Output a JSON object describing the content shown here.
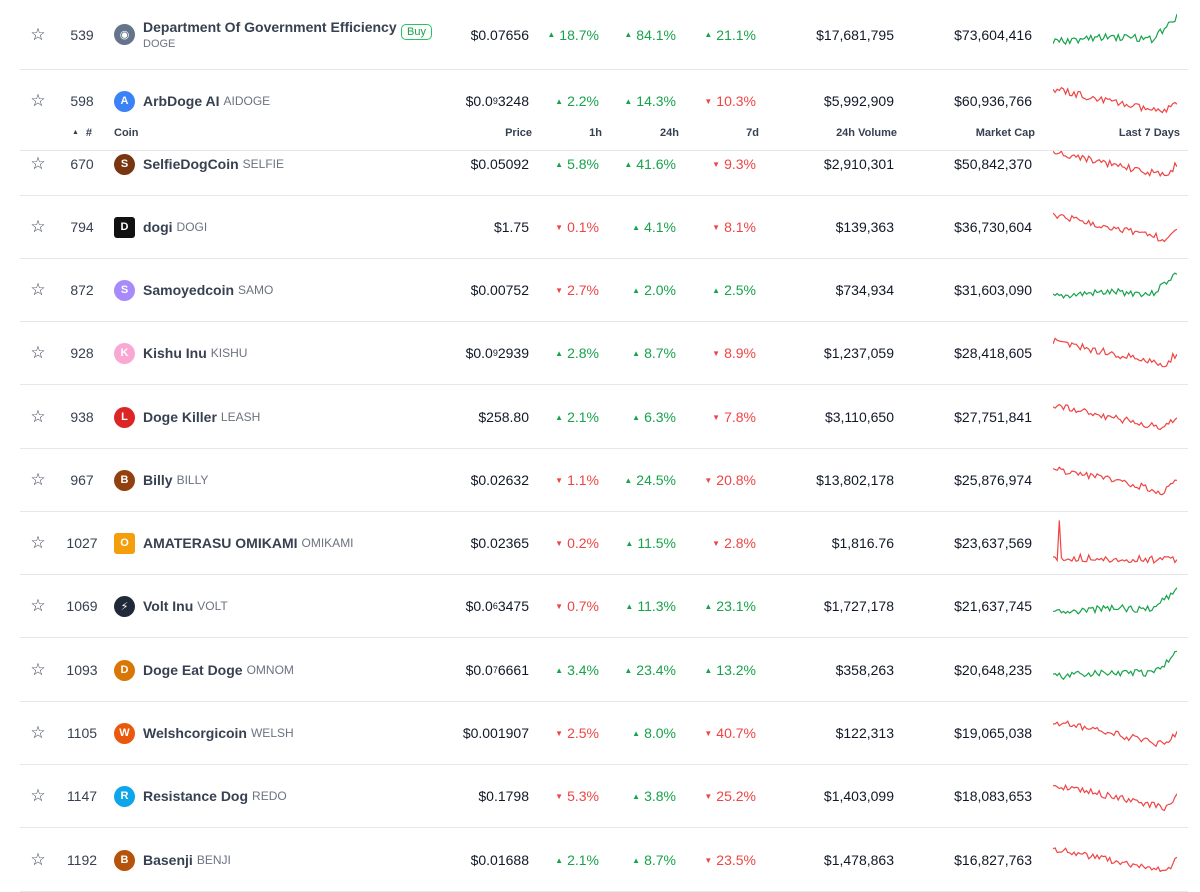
{
  "header": {
    "sort_icon": "▲",
    "rank": "#",
    "coin": "Coin",
    "price": "Price",
    "h1": "1h",
    "h24": "24h",
    "d7": "7d",
    "volume": "24h Volume",
    "market_cap": "Market Cap",
    "last7": "Last 7 Days"
  },
  "buy_label": "Buy",
  "colors": {
    "up": "#16a34a",
    "down": "#ef4444",
    "border": "#e5e7eb"
  },
  "rows": [
    {
      "rank": "539",
      "name": "Department Of Government Efficiency",
      "symbol": "DOGE",
      "price_pre": "$0.07656",
      "price_sub": "",
      "price_post": "",
      "h1": "18.7%",
      "h1_dir": "up",
      "h24": "84.1%",
      "h24_dir": "up",
      "d7": "21.1%",
      "d7_dir": "up",
      "volume": "$17,681,795",
      "mcap": "$73,604,416",
      "spark_dir": "up",
      "logo_icon": "doge-efficiency-logo-icon",
      "logo_color": "#64748b",
      "logo_glyph": "◉"
    },
    {
      "rank": "598",
      "name": "ArbDoge AI",
      "symbol": "AIDOGE",
      "price_pre": "$0.0",
      "price_sub": "9",
      "price_post": "3248",
      "h1": "2.2%",
      "h1_dir": "up",
      "h24": "14.3%",
      "h24_dir": "up",
      "d7": "10.3%",
      "d7_dir": "down",
      "volume": "$5,992,909",
      "mcap": "$60,936,766",
      "spark_dir": "down",
      "logo_icon": "arbdoge-logo-icon",
      "logo_color": "#3b82f6",
      "logo_glyph": "A"
    },
    {
      "rank": "670",
      "name": "SelfieDogCoin",
      "symbol": "SELFIE",
      "price_pre": "$0.05092",
      "price_sub": "",
      "price_post": "",
      "h1": "5.8%",
      "h1_dir": "up",
      "h24": "41.6%",
      "h24_dir": "up",
      "d7": "9.3%",
      "d7_dir": "down",
      "volume": "$2,910,301",
      "mcap": "$50,842,370",
      "spark_dir": "down",
      "logo_icon": "selfiedog-logo-icon",
      "logo_color": "#78350f",
      "logo_glyph": "S"
    },
    {
      "rank": "794",
      "name": "dogi",
      "symbol": "DOGI",
      "price_pre": "$1.75",
      "price_sub": "",
      "price_post": "",
      "h1": "0.1%",
      "h1_dir": "down",
      "h24": "4.1%",
      "h24_dir": "up",
      "d7": "8.1%",
      "d7_dir": "down",
      "volume": "$139,363",
      "mcap": "$36,730,604",
      "spark_dir": "down",
      "logo_icon": "dogi-logo-icon",
      "logo_color": "#111111",
      "logo_glyph": "D"
    },
    {
      "rank": "872",
      "name": "Samoyedcoin",
      "symbol": "SAMO",
      "price_pre": "$0.00752",
      "price_sub": "",
      "price_post": "",
      "h1": "2.7%",
      "h1_dir": "down",
      "h24": "2.0%",
      "h24_dir": "up",
      "d7": "2.5%",
      "d7_dir": "up",
      "volume": "$734,934",
      "mcap": "$31,603,090",
      "spark_dir": "up",
      "logo_icon": "samoyed-logo-icon",
      "logo_color": "#a78bfa",
      "logo_glyph": "S"
    },
    {
      "rank": "928",
      "name": "Kishu Inu",
      "symbol": "KISHU",
      "price_pre": "$0.0",
      "price_sub": "9",
      "price_post": "2939",
      "h1": "2.8%",
      "h1_dir": "up",
      "h24": "8.7%",
      "h24_dir": "up",
      "d7": "8.9%",
      "d7_dir": "down",
      "volume": "$1,237,059",
      "mcap": "$28,418,605",
      "spark_dir": "down",
      "logo_icon": "kishu-logo-icon",
      "logo_color": "#f9a8d4",
      "logo_glyph": "K"
    },
    {
      "rank": "938",
      "name": "Doge Killer",
      "symbol": "LEASH",
      "price_pre": "$258.80",
      "price_sub": "",
      "price_post": "",
      "h1": "2.1%",
      "h1_dir": "up",
      "h24": "6.3%",
      "h24_dir": "up",
      "d7": "7.8%",
      "d7_dir": "down",
      "volume": "$3,110,650",
      "mcap": "$27,751,841",
      "spark_dir": "down",
      "logo_icon": "doge-killer-logo-icon",
      "logo_color": "#dc2626",
      "logo_glyph": "L"
    },
    {
      "rank": "967",
      "name": "Billy",
      "symbol": "BILLY",
      "price_pre": "$0.02632",
      "price_sub": "",
      "price_post": "",
      "h1": "1.1%",
      "h1_dir": "down",
      "h24": "24.5%",
      "h24_dir": "up",
      "d7": "20.8%",
      "d7_dir": "down",
      "volume": "$13,802,178",
      "mcap": "$25,876,974",
      "spark_dir": "down",
      "logo_icon": "billy-logo-icon",
      "logo_color": "#92400e",
      "logo_glyph": "B"
    },
    {
      "rank": "1027",
      "name": "AMATERASU OMIKAMI",
      "symbol": "OMIKAMI",
      "price_pre": "$0.02365",
      "price_sub": "",
      "price_post": "",
      "h1": "0.2%",
      "h1_dir": "down",
      "h24": "11.5%",
      "h24_dir": "up",
      "d7": "2.8%",
      "d7_dir": "down",
      "volume": "$1,816.76",
      "mcap": "$23,637,569",
      "spark_dir": "flat",
      "logo_icon": "omikami-logo-icon",
      "logo_color": "#f59e0b",
      "logo_glyph": "O"
    },
    {
      "rank": "1069",
      "name": "Volt Inu",
      "symbol": "VOLT",
      "price_pre": "$0.0",
      "price_sub": "6",
      "price_post": "3475",
      "h1": "0.7%",
      "h1_dir": "down",
      "h24": "11.3%",
      "h24_dir": "up",
      "d7": "23.1%",
      "d7_dir": "up",
      "volume": "$1,727,178",
      "mcap": "$21,637,745",
      "spark_dir": "up",
      "logo_icon": "volt-logo-icon",
      "logo_color": "#1f2937",
      "logo_glyph": "⚡"
    },
    {
      "rank": "1093",
      "name": "Doge Eat Doge",
      "symbol": "OMNOM",
      "price_pre": "$0.0",
      "price_sub": "7",
      "price_post": "6661",
      "h1": "3.4%",
      "h1_dir": "up",
      "h24": "23.4%",
      "h24_dir": "up",
      "d7": "13.2%",
      "d7_dir": "up",
      "volume": "$358,263",
      "mcap": "$20,648,235",
      "spark_dir": "up",
      "logo_icon": "omnom-logo-icon",
      "logo_color": "#d97706",
      "logo_glyph": "D"
    },
    {
      "rank": "1105",
      "name": "Welshcorgicoin",
      "symbol": "WELSH",
      "price_pre": "$0.001907",
      "price_sub": "",
      "price_post": "",
      "h1": "2.5%",
      "h1_dir": "down",
      "h24": "8.0%",
      "h24_dir": "up",
      "d7": "40.7%",
      "d7_dir": "down",
      "volume": "$122,313",
      "mcap": "$19,065,038",
      "spark_dir": "down",
      "logo_icon": "welsh-logo-icon",
      "logo_color": "#ea580c",
      "logo_glyph": "W"
    },
    {
      "rank": "1147",
      "name": "Resistance Dog",
      "symbol": "REDO",
      "price_pre": "$0.1798",
      "price_sub": "",
      "price_post": "",
      "h1": "5.3%",
      "h1_dir": "down",
      "h24": "3.8%",
      "h24_dir": "up",
      "d7": "25.2%",
      "d7_dir": "down",
      "volume": "$1,403,099",
      "mcap": "$18,083,653",
      "spark_dir": "down",
      "logo_icon": "redo-logo-icon",
      "logo_color": "#0ea5e9",
      "logo_glyph": "R"
    },
    {
      "rank": "1192",
      "name": "Basenji",
      "symbol": "BENJI",
      "price_pre": "$0.01688",
      "price_sub": "",
      "price_post": "",
      "h1": "2.1%",
      "h1_dir": "up",
      "h24": "8.7%",
      "h24_dir": "up",
      "d7": "23.5%",
      "d7_dir": "down",
      "volume": "$1,478,863",
      "mcap": "$16,827,763",
      "spark_dir": "down",
      "logo_icon": "basenji-logo-icon",
      "logo_color": "#b45309",
      "logo_glyph": "B"
    }
  ]
}
